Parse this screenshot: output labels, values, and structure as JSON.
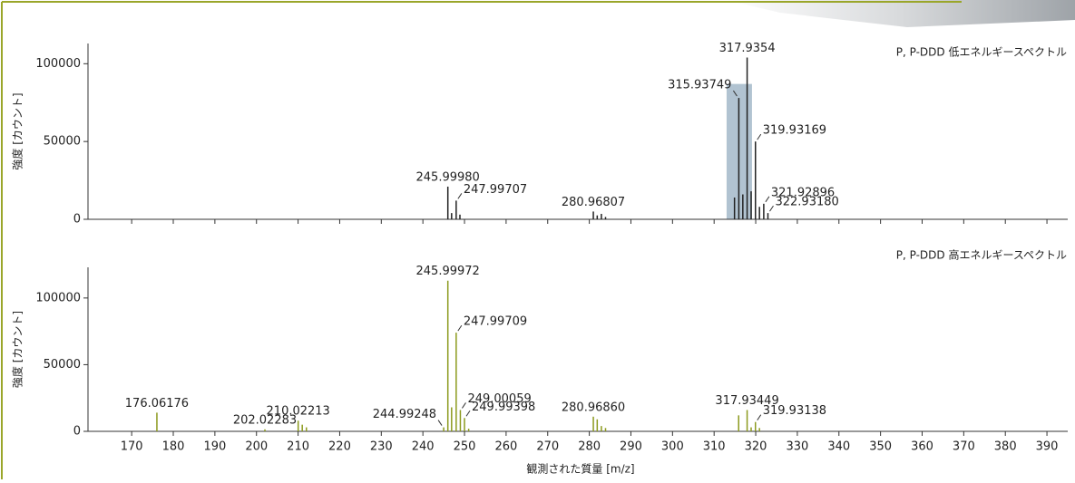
{
  "chart_data": [
    {
      "type": "stem",
      "subtitle": "P, P-DDD 低エネルギースペクトル",
      "ylabel": "強度 [カウント]",
      "xlim": [
        159.5,
        395
      ],
      "xticks": [
        170,
        180,
        190,
        200,
        210,
        220,
        230,
        240,
        250,
        260,
        270,
        280,
        290,
        300,
        310,
        320,
        330,
        340,
        350,
        360,
        370,
        380,
        390
      ],
      "xtick_labels": false,
      "ylim": [
        0,
        113000
      ],
      "yticks": [
        0,
        50000,
        100000
      ],
      "color": "#222222",
      "highlight": {
        "x": [
          313,
          319.1
        ],
        "y": 87000,
        "color": "#9db4c6"
      },
      "x": [
        245.9998,
        246.9,
        247.99707,
        248.9,
        280.96807,
        281.9,
        282.9,
        283.9,
        314.9,
        315.93749,
        316.9,
        317.9354,
        318.9,
        319.93169,
        320.9,
        321.92896,
        322.9318
      ],
      "values": [
        21000,
        4000,
        12000,
        3000,
        5000,
        2500,
        3500,
        1500,
        14000,
        78000,
        16000,
        104000,
        18000,
        50000,
        8000,
        10000,
        4000
      ],
      "x_labels": [
        "245.99980",
        null,
        "247.99707",
        null,
        "280.96807",
        null,
        null,
        null,
        null,
        "315.93749",
        null,
        "317.9354",
        null,
        "319.93169",
        null,
        "321.92896",
        "322.93180"
      ]
    },
    {
      "type": "stem",
      "subtitle": "P, P-DDD 高エネルギースペクトル",
      "ylabel": "強度 [カウント]",
      "xlabel": "観測された質量 [m/z]",
      "xlim": [
        159.5,
        395
      ],
      "xticks": [
        170,
        180,
        190,
        200,
        210,
        220,
        230,
        240,
        250,
        260,
        270,
        280,
        290,
        300,
        310,
        320,
        330,
        340,
        350,
        360,
        370,
        380,
        390
      ],
      "xtick_labels": true,
      "ylim": [
        0,
        123000
      ],
      "yticks": [
        0,
        50000,
        100000
      ],
      "color": "#8c9a1e",
      "x": [
        176.06176,
        202.02283,
        210.02213,
        211,
        212,
        244.99248,
        245.99972,
        246.9,
        247.99709,
        249.00059,
        249.99398,
        251,
        280.9686,
        281.9,
        282.9,
        283.9,
        315.9,
        317.93449,
        318.9,
        319.93138,
        320.9
      ],
      "values": [
        14000,
        1500,
        8000,
        5000,
        3000,
        3000,
        113000,
        18000,
        74000,
        16000,
        10000,
        2000,
        11000,
        9000,
        4000,
        2500,
        12000,
        16000,
        3000,
        7000,
        2500
      ],
      "x_labels": [
        "176.06176",
        "202.02283",
        "210.02213",
        null,
        null,
        "244.99248",
        "245.99972",
        null,
        "247.99709",
        "249.00059",
        "249.99398",
        null,
        "280.96860",
        null,
        null,
        null,
        null,
        "317.93449",
        null,
        "319.93138",
        null
      ]
    }
  ]
}
